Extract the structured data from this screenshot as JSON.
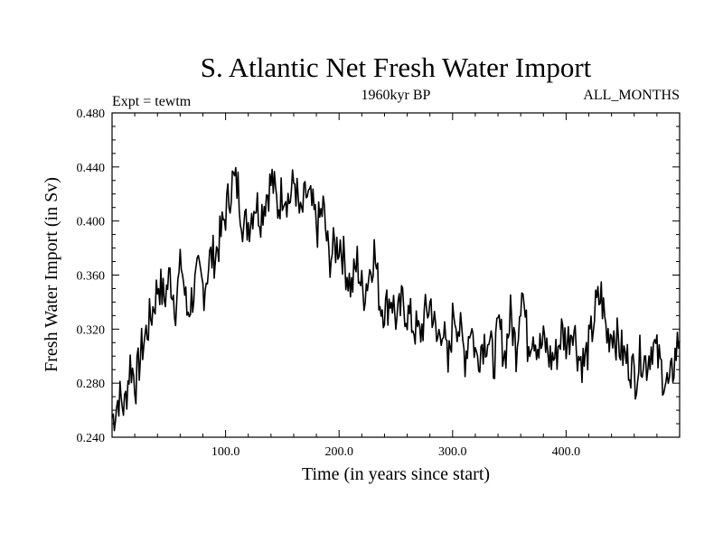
{
  "chart_data": {
    "type": "line",
    "title": "S. Atlantic Net Fresh Water Import",
    "subtitle": "1960kyr BP",
    "left_label": "Expt = tewtm",
    "right_label": "ALL_MONTHS",
    "xlabel": "Time (in years since start)",
    "ylabel": "Fresh Water Import (in Sv)",
    "xlim": [
      0,
      500
    ],
    "ylim": [
      0.24,
      0.48
    ],
    "xticks": [
      100,
      200,
      300,
      400
    ],
    "xtick_labels": [
      "100.0",
      "200.0",
      "300.0",
      "400.0"
    ],
    "yticks": [
      0.24,
      0.28,
      0.32,
      0.36,
      0.4,
      0.44,
      0.48
    ],
    "ytick_labels": [
      "0.240",
      "0.280",
      "0.320",
      "0.360",
      "0.400",
      "0.440",
      "0.480"
    ],
    "grid": false,
    "series": [
      {
        "name": "net fresh water import",
        "x": [
          1,
          6,
          11,
          16,
          21,
          26,
          31,
          36,
          41,
          46,
          51,
          56,
          61,
          66,
          71,
          76,
          81,
          86,
          91,
          96,
          101,
          106,
          111,
          116,
          121,
          126,
          131,
          136,
          141,
          146,
          151,
          156,
          161,
          166,
          171,
          176,
          181,
          186,
          191,
          196,
          201,
          206,
          211,
          216,
          221,
          226,
          231,
          236,
          241,
          246,
          251,
          256,
          261,
          266,
          271,
          276,
          281,
          286,
          291,
          296,
          301,
          306,
          311,
          316,
          321,
          326,
          331,
          336,
          341,
          346,
          351,
          356,
          361,
          366,
          371,
          376,
          381,
          386,
          391,
          396,
          401,
          406,
          411,
          416,
          421,
          426,
          431,
          436,
          441,
          446,
          451,
          456,
          461,
          466,
          471,
          476,
          481,
          486,
          491,
          496,
          500
        ],
        "values": [
          0.255,
          0.27,
          0.262,
          0.295,
          0.28,
          0.305,
          0.32,
          0.335,
          0.355,
          0.342,
          0.36,
          0.338,
          0.37,
          0.332,
          0.345,
          0.36,
          0.35,
          0.372,
          0.375,
          0.39,
          0.41,
          0.43,
          0.425,
          0.395,
          0.4,
          0.415,
          0.405,
          0.42,
          0.43,
          0.41,
          0.425,
          0.415,
          0.43,
          0.4,
          0.42,
          0.41,
          0.395,
          0.41,
          0.372,
          0.38,
          0.385,
          0.365,
          0.35,
          0.37,
          0.345,
          0.36,
          0.378,
          0.34,
          0.335,
          0.345,
          0.325,
          0.34,
          0.33,
          0.322,
          0.315,
          0.33,
          0.34,
          0.31,
          0.325,
          0.29,
          0.335,
          0.32,
          0.3,
          0.325,
          0.298,
          0.31,
          0.315,
          0.295,
          0.322,
          0.3,
          0.33,
          0.305,
          0.355,
          0.31,
          0.32,
          0.305,
          0.31,
          0.298,
          0.3,
          0.318,
          0.31,
          0.325,
          0.3,
          0.295,
          0.31,
          0.335,
          0.345,
          0.315,
          0.32,
          0.31,
          0.3,
          0.295,
          0.285,
          0.302,
          0.295,
          0.31,
          0.298,
          0.285,
          0.275,
          0.3,
          0.315
        ]
      }
    ]
  }
}
